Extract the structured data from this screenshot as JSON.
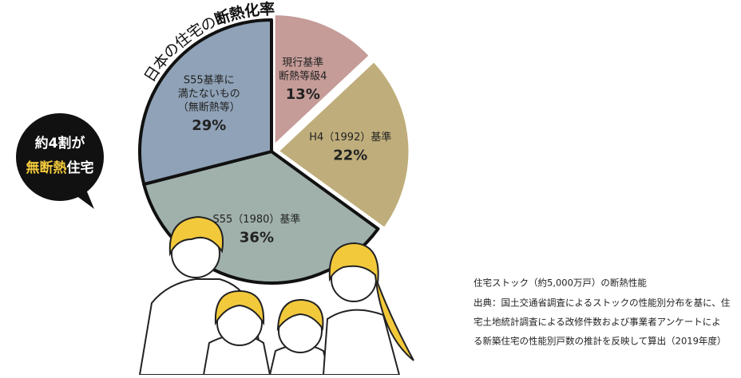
{
  "chart_data": {
    "type": "pie",
    "title": {
      "plain": "日本の住宅の",
      "bold": "断熱化率"
    },
    "categories": [
      [
        "現行基準",
        "断熱等級4"
      ],
      [
        "H4（1992）基準"
      ],
      [
        "S55（1980）基準"
      ],
      [
        "S55基準に",
        "満たないもの",
        "（無断熱等）"
      ]
    ],
    "values": [
      13,
      22,
      36,
      29
    ],
    "value_labels": [
      "13%",
      "22%",
      "36%",
      "29%"
    ],
    "colors": [
      "#c59c98",
      "#bfae7b",
      "#a0b1ac",
      "#8fa2b7"
    ],
    "callout": {
      "line1": "約4割が",
      "highlight": "無断熱",
      "rest": "住宅"
    },
    "footnote": {
      "title": "住宅ストック（約5,000万戸）の断熱性能",
      "lines": [
        "出典：国土交通省調査によるストックの性能別分布を基に、住",
        "宅土地統計調査による改修件数および事業者アンケートによ",
        "る新築住宅の性能別戸数の推計を反映して算出（2019年度）"
      ]
    }
  }
}
